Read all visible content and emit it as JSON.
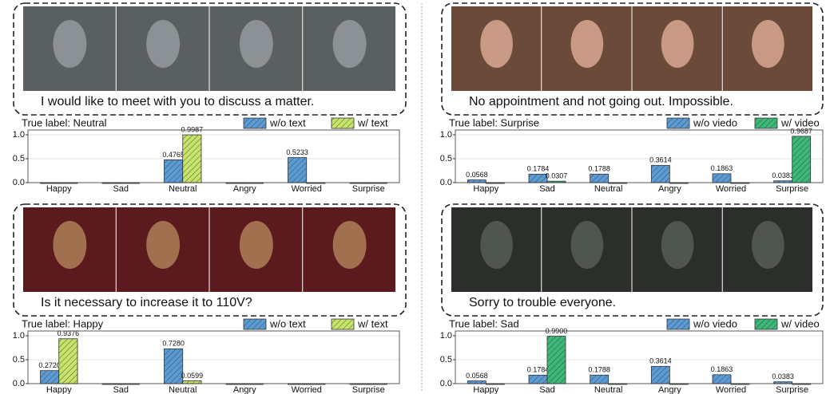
{
  "chart_data": [
    {
      "type": "bar",
      "caption": "I would like to meet with you to discuss a matter.",
      "title": "True label: Neutral",
      "categories": [
        "Happy",
        "Sad",
        "Neutral",
        "Angry",
        "Worried",
        "Surprise"
      ],
      "series": [
        {
          "name": "w/o text",
          "color": "#5b9bd5",
          "values": [
            0,
            0,
            0.4765,
            0,
            0.5233,
            0
          ],
          "value_labels": [
            null,
            null,
            "0.4765",
            null,
            "0.5233",
            null
          ]
        },
        {
          "name": "w/ text",
          "color": "#c6e36a",
          "values": [
            0,
            0,
            0.9987,
            0,
            0,
            0
          ],
          "value_labels": [
            null,
            null,
            "0.9987",
            null,
            null,
            null
          ]
        }
      ],
      "ylim": [
        0,
        1.1
      ],
      "yticks": [
        {
          "value": 0,
          "label": "0.0"
        },
        {
          "value": 0.5,
          "label": "0.5"
        },
        {
          "value": 1,
          "label": "1.0"
        }
      ],
      "grid": true
    },
    {
      "type": "bar",
      "caption": "No appointment and not going out. Impossible.",
      "title": "True label: Surprise",
      "categories": [
        "Happy",
        "Sad",
        "Neutral",
        "Angry",
        "Worried",
        "Surprise"
      ],
      "series": [
        {
          "name": "w/o viedo",
          "color": "#5b9bd5",
          "values": [
            0.0568,
            0.1784,
            0.1788,
            0.3614,
            0.1863,
            0.0383
          ],
          "value_labels": [
            "0.0568",
            "0.1784",
            "0.1788",
            "0.3614",
            "0.1863",
            "0.0383"
          ]
        },
        {
          "name": "w/ video",
          "color": "#3cb878",
          "values": [
            0,
            0.0307,
            0,
            0,
            0,
            0.9687
          ],
          "value_labels": [
            null,
            "0.0307",
            null,
            null,
            null,
            "0.9687"
          ]
        }
      ],
      "ylim": [
        0,
        1.1
      ],
      "yticks": [
        {
          "value": 0,
          "label": "0.0"
        },
        {
          "value": 0.5,
          "label": "0.5"
        },
        {
          "value": 1,
          "label": "1.0"
        }
      ],
      "grid": true
    },
    {
      "type": "bar",
      "caption": "Is it necessary to increase it to 110V?",
      "title": "True label: Happy",
      "categories": [
        "Happy",
        "Sad",
        "Neutral",
        "Angry",
        "Worried",
        "Surprise"
      ],
      "series": [
        {
          "name": "w/o text",
          "color": "#5b9bd5",
          "values": [
            0.272,
            0,
            0.728,
            0,
            0,
            0
          ],
          "value_labels": [
            "0.2720",
            null,
            "0.7280",
            null,
            null,
            null
          ]
        },
        {
          "name": "w/ text",
          "color": "#c6e36a",
          "values": [
            0.9376,
            0,
            0.0599,
            0,
            0,
            0
          ],
          "value_labels": [
            "0.9376",
            null,
            "0.0599",
            null,
            null,
            null
          ]
        }
      ],
      "ylim": [
        0,
        1.1
      ],
      "yticks": [
        {
          "value": 0,
          "label": "0.0"
        },
        {
          "value": 0.5,
          "label": "0.5"
        },
        {
          "value": 1,
          "label": "1.0"
        }
      ],
      "grid": true
    },
    {
      "type": "bar",
      "caption": "Sorry to trouble everyone.",
      "title": "True label: Sad",
      "categories": [
        "Happy",
        "Sad",
        "Neutral",
        "Angry",
        "Worried",
        "Surprise"
      ],
      "series": [
        {
          "name": "w/o viedo",
          "color": "#5b9bd5",
          "values": [
            0.0568,
            0.1784,
            0.1788,
            0.3614,
            0.1863,
            0.0383
          ],
          "value_labels": [
            "0.0568",
            "0.1784",
            "0.1788",
            "0.3614",
            "0.1863",
            "0.0383"
          ]
        },
        {
          "name": "w/ video",
          "color": "#3cb878",
          "values": [
            0,
            0.99,
            0,
            0,
            0,
            0
          ],
          "value_labels": [
            null,
            "0.9900",
            null,
            null,
            null,
            null
          ]
        }
      ],
      "ylim": [
        0,
        1.1
      ],
      "yticks": [
        {
          "value": 0,
          "label": "0.0"
        },
        {
          "value": 0.5,
          "label": "0.5"
        },
        {
          "value": 1,
          "label": "1.0"
        }
      ],
      "grid": true
    }
  ]
}
